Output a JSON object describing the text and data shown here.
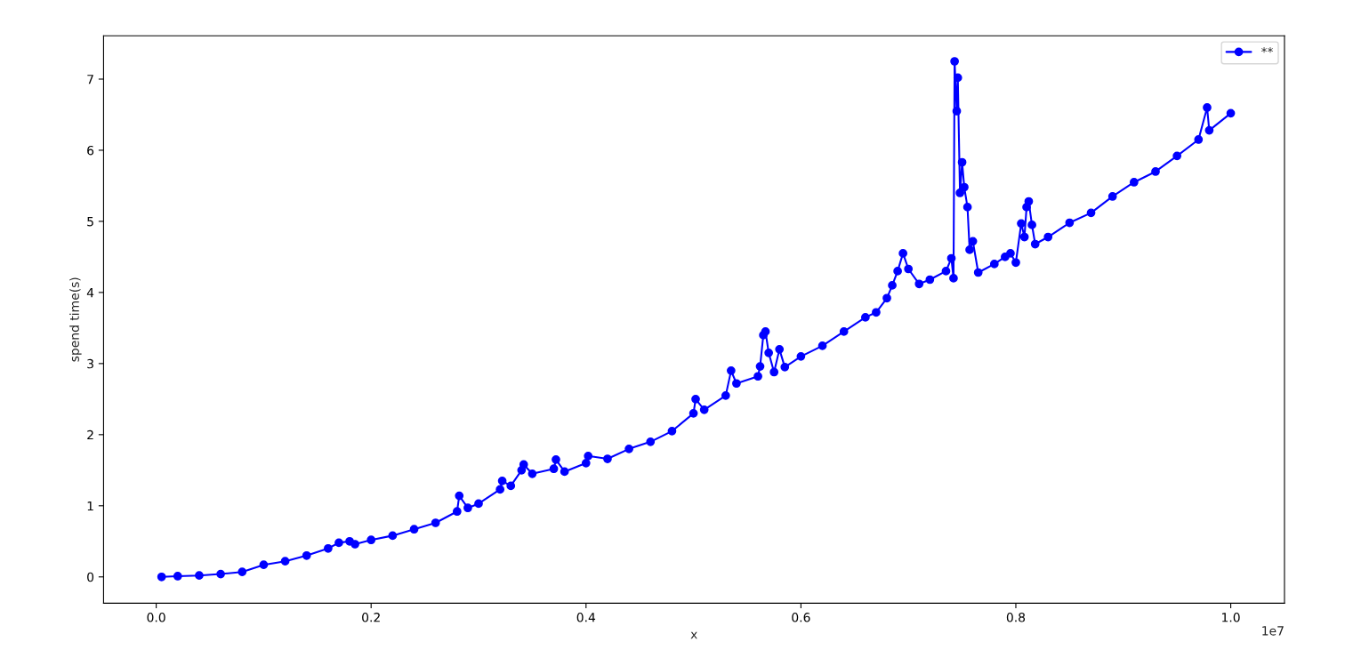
{
  "chart_data": {
    "type": "line",
    "xlabel": "x",
    "ylabel": "spend time(s)",
    "annotations": [
      "1e7"
    ],
    "xlim": [
      -0.049,
      1.05
    ],
    "ylim": [
      -0.37,
      7.61
    ],
    "xticks": [
      {
        "value": 0,
        "label": "0.0"
      },
      0.2,
      0.4,
      0.6,
      0.8,
      {
        "value": 1,
        "label": "1.0"
      }
    ],
    "yticks": [
      0,
      1,
      2,
      3,
      4,
      5,
      6,
      7
    ],
    "legend": "top right",
    "marker": "circle",
    "line_style": "solid",
    "series": [
      {
        "name": "**",
        "color": "#0000ff",
        "x": [
          0.005,
          0.02,
          0.04,
          0.06,
          0.08,
          0.1,
          0.12,
          0.14,
          0.16,
          0.17,
          0.18,
          0.185,
          0.2,
          0.22,
          0.24,
          0.26,
          0.28,
          0.282,
          0.29,
          0.3,
          0.32,
          0.322,
          0.33,
          0.34,
          0.342,
          0.35,
          0.37,
          0.372,
          0.38,
          0.4,
          0.402,
          0.42,
          0.44,
          0.46,
          0.48,
          0.5,
          0.502,
          0.51,
          0.53,
          0.535,
          0.54,
          0.56,
          0.562,
          0.565,
          0.567,
          0.57,
          0.575,
          0.58,
          0.585,
          0.6,
          0.62,
          0.64,
          0.66,
          0.67,
          0.68,
          0.685,
          0.69,
          0.695,
          0.7,
          0.71,
          0.72,
          0.735,
          0.74,
          0.742,
          0.743,
          0.745,
          0.746,
          0.748,
          0.75,
          0.752,
          0.755,
          0.757,
          0.76,
          0.765,
          0.78,
          0.79,
          0.795,
          0.8,
          0.805,
          0.808,
          0.81,
          0.812,
          0.815,
          0.818,
          0.83,
          0.85,
          0.87,
          0.89,
          0.91,
          0.93,
          0.95,
          0.97,
          0.978,
          0.98,
          1.0
        ],
        "values": [
          0.0,
          0.01,
          0.02,
          0.04,
          0.07,
          0.17,
          0.22,
          0.3,
          0.4,
          0.48,
          0.5,
          0.46,
          0.52,
          0.58,
          0.67,
          0.76,
          0.92,
          1.14,
          0.97,
          1.03,
          1.23,
          1.35,
          1.28,
          1.5,
          1.58,
          1.45,
          1.52,
          1.65,
          1.48,
          1.6,
          1.7,
          1.66,
          1.8,
          1.9,
          2.05,
          2.3,
          2.5,
          2.35,
          2.55,
          2.9,
          2.72,
          2.82,
          2.96,
          3.4,
          3.45,
          3.15,
          2.88,
          3.2,
          2.95,
          3.1,
          3.25,
          3.45,
          3.65,
          3.72,
          3.92,
          4.1,
          4.3,
          4.55,
          4.33,
          4.12,
          4.18,
          4.3,
          4.48,
          4.2,
          7.25,
          6.55,
          7.02,
          5.4,
          5.83,
          5.48,
          5.2,
          4.6,
          4.72,
          4.28,
          4.4,
          4.5,
          4.55,
          4.42,
          4.97,
          4.78,
          5.2,
          5.28,
          4.95,
          4.68,
          4.78,
          4.98,
          5.12,
          5.35,
          5.55,
          5.7,
          5.92,
          6.15,
          6.6,
          6.28,
          6.52
        ]
      }
    ]
  }
}
